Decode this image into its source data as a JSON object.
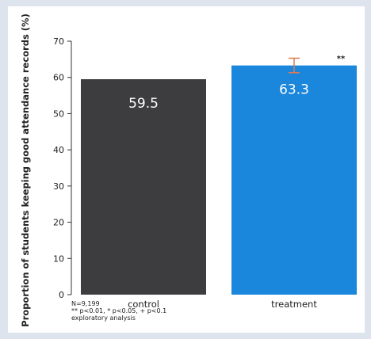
{
  "chart_data": {
    "type": "bar",
    "ylabel": "Proportion of students keeping good attendance records (%)",
    "ylim": [
      0,
      70
    ],
    "yticks": [
      0,
      10,
      20,
      30,
      40,
      50,
      60,
      70
    ],
    "categories": [
      "control",
      "treatment"
    ],
    "values": [
      59.5,
      63.3
    ],
    "value_labels": [
      "59.5",
      "63.3"
    ],
    "bar_colors": [
      "#3d3d3f",
      "#1a86dc"
    ],
    "error_bar": {
      "category": "treatment",
      "low": 61.3,
      "high": 65.3,
      "color": "#e07a50"
    },
    "significance": {
      "category": "treatment",
      "text": "**"
    },
    "grid": false
  },
  "footnotes": [
    "N=9,199",
    "** p<0.01, * p<0.05, + p<0.1",
    "exploratory analysis"
  ]
}
